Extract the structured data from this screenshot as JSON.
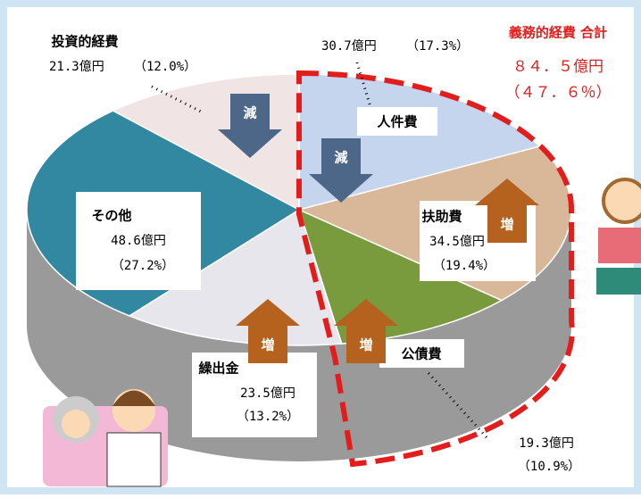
{
  "chart_data": {
    "type": "pie",
    "categories": [
      "人件費",
      "扶助費",
      "公債費",
      "繰出金",
      "その他",
      "投資的経費"
    ],
    "values": [
      30.7,
      34.5,
      19.3,
      23.5,
      48.6,
      21.3
    ],
    "value_labels": [
      "30.7億円",
      "34.5億円",
      "19.3億円",
      "23.5億円",
      "48.6億円",
      "21.3億円"
    ],
    "share_labels": [
      "（17.3%）",
      "（19.4%）",
      "（10.9%）",
      "（13.2%）",
      "（27.2%）",
      "（12.0%）"
    ],
    "colors": [
      "#c6d5ee",
      "#d8b898",
      "#7a9a3e",
      "#e6e6ec",
      "#3188a0",
      "#f1e4e4"
    ],
    "annotations": {
      "total_title": "義務的経費 合計",
      "total_amount": "８４．５億円",
      "total_share": "（４７．６％）",
      "arrows": [
        "減",
        "減",
        "増",
        "増",
        "増"
      ]
    }
  }
}
